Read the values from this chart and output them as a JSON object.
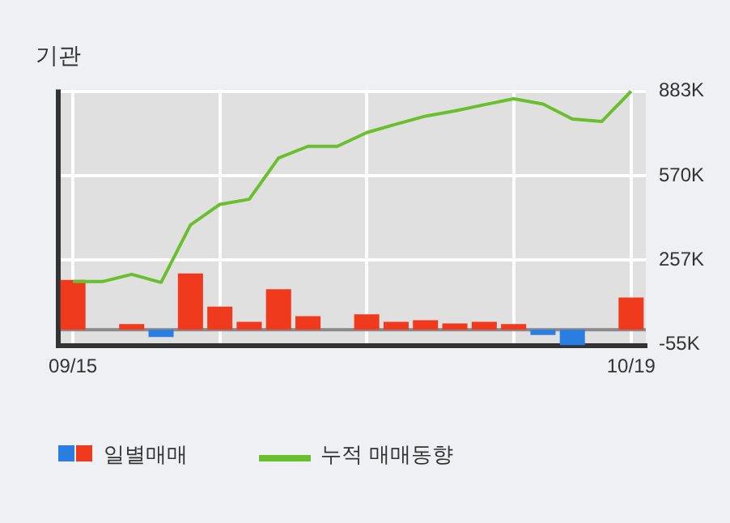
{
  "chart_data": {
    "type": "bar",
    "title": "기관",
    "categories": [
      "09/15",
      null,
      null,
      null,
      null,
      null,
      null,
      null,
      null,
      null,
      null,
      null,
      null,
      null,
      null,
      null,
      null,
      null,
      null,
      "10/19"
    ],
    "series": [
      {
        "name": "일별매매",
        "colors": [
          "#f03a1e",
          "#f03a1e",
          "#f03a1e",
          "#2a7de1",
          "#f03a1e",
          "#f03a1e",
          "#f03a1e",
          "#f03a1e",
          "#f03a1e",
          "#f03a1e",
          "#f03a1e",
          "#f03a1e",
          "#f03a1e",
          "#f03a1e",
          "#f03a1e",
          "#f03a1e",
          "#2a7de1",
          "#2a7de1",
          "#f03a1e",
          "#f03a1e"
        ],
        "values": [
          184000,
          0,
          21000,
          -27000,
          208000,
          85000,
          29000,
          150000,
          50000,
          0,
          57000,
          29000,
          35000,
          23000,
          29000,
          21000,
          -20000,
          -57000,
          0,
          119000
        ]
      },
      {
        "name": "누적 매매동향",
        "type": "line",
        "color": "#6abf2e",
        "values": [
          178000,
          178000,
          205000,
          175000,
          388000,
          464000,
          483000,
          636000,
          679000,
          679000,
          730000,
          761000,
          791000,
          810000,
          833000,
          855000,
          836000,
          780000,
          771000,
          883000
        ]
      }
    ],
    "ylim": [
      -60000,
      890000
    ],
    "yticks": [
      {
        "value": -55000,
        "label": "-55K"
      },
      {
        "value": 257000,
        "label": "257K"
      },
      {
        "value": 570000,
        "label": "570K"
      },
      {
        "value": 883000,
        "label": "883K"
      }
    ],
    "ref_lines": [
      {
        "axis": "y",
        "value": 0,
        "color": "#8a8a8a"
      }
    ],
    "grid": true,
    "legend": "bottom",
    "marker": "none",
    "line_style": "solid"
  }
}
